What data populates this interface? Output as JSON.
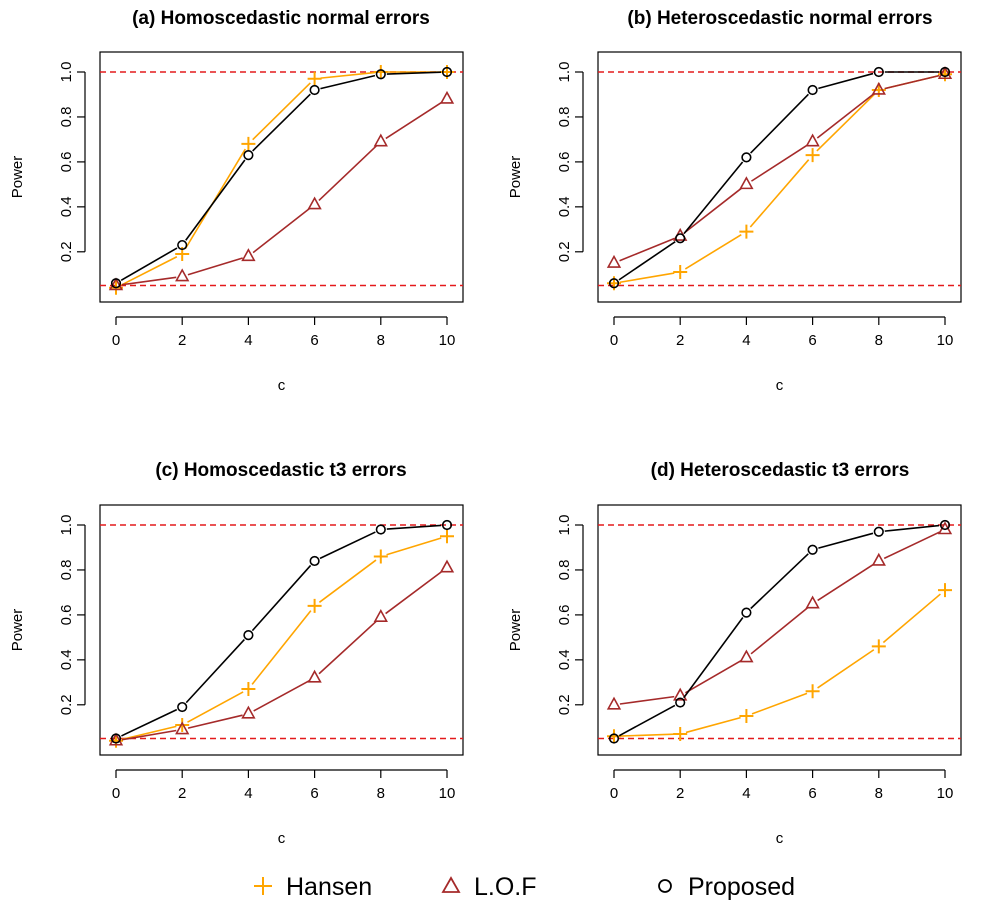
{
  "chart_data": [
    {
      "type": "line",
      "title": "(a) Homoscedastic normal errors",
      "xlabel": "c",
      "ylabel": "Power",
      "x": [
        0,
        2,
        4,
        6,
        8,
        10
      ],
      "xticks": [
        "0",
        "2",
        "4",
        "6",
        "8",
        "10"
      ],
      "yticks": [
        "0.2",
        "0.4",
        "0.6",
        "0.8",
        "1.0"
      ],
      "xlim": [
        0,
        10
      ],
      "ylim": [
        0.03,
        1.0
      ],
      "reference_lines": [
        1.0,
        0.05
      ],
      "grid": false,
      "series": [
        {
          "name": "Hansen",
          "values": [
            0.04,
            0.19,
            0.68,
            0.97,
            1.0,
            1.0
          ]
        },
        {
          "name": "L.O.F",
          "values": [
            0.05,
            0.09,
            0.18,
            0.41,
            0.69,
            0.88
          ]
        },
        {
          "name": "Proposed",
          "values": [
            0.06,
            0.23,
            0.63,
            0.92,
            0.99,
            1.0
          ]
        }
      ]
    },
    {
      "type": "line",
      "title": "(b) Heteroscedastic normal errors",
      "xlabel": "c",
      "ylabel": "Power",
      "x": [
        0,
        2,
        4,
        6,
        8,
        10
      ],
      "xticks": [
        "0",
        "2",
        "4",
        "6",
        "8",
        "10"
      ],
      "yticks": [
        "0.2",
        "0.4",
        "0.6",
        "0.8",
        "1.0"
      ],
      "xlim": [
        0,
        10
      ],
      "ylim": [
        0.03,
        1.0
      ],
      "reference_lines": [
        1.0,
        0.05
      ],
      "grid": false,
      "series": [
        {
          "name": "Hansen",
          "values": [
            0.06,
            0.11,
            0.29,
            0.63,
            0.92,
            0.99
          ]
        },
        {
          "name": "L.O.F",
          "values": [
            0.15,
            0.27,
            0.5,
            0.69,
            0.92,
            0.99
          ]
        },
        {
          "name": "Proposed",
          "values": [
            0.06,
            0.26,
            0.62,
            0.92,
            1.0,
            1.0
          ]
        }
      ]
    },
    {
      "type": "line",
      "title": "(c) Homoscedastic t3 errors",
      "xlabel": "c",
      "ylabel": "Power",
      "x": [
        0,
        2,
        4,
        6,
        8,
        10
      ],
      "xticks": [
        "0",
        "2",
        "4",
        "6",
        "8",
        "10"
      ],
      "yticks": [
        "0.2",
        "0.4",
        "0.6",
        "0.8",
        "1.0"
      ],
      "xlim": [
        0,
        10
      ],
      "ylim": [
        0.03,
        1.0
      ],
      "reference_lines": [
        1.0,
        0.05
      ],
      "grid": false,
      "series": [
        {
          "name": "Hansen",
          "values": [
            0.04,
            0.11,
            0.27,
            0.64,
            0.86,
            0.95
          ]
        },
        {
          "name": "L.O.F",
          "values": [
            0.04,
            0.09,
            0.16,
            0.32,
            0.59,
            0.81
          ]
        },
        {
          "name": "Proposed",
          "values": [
            0.05,
            0.19,
            0.51,
            0.84,
            0.98,
            1.0
          ]
        }
      ]
    },
    {
      "type": "line",
      "title": "(d) Heteroscedastic t3 errors",
      "xlabel": "c",
      "ylabel": "Power",
      "x": [
        0,
        2,
        4,
        6,
        8,
        10
      ],
      "xticks": [
        "0",
        "2",
        "4",
        "6",
        "8",
        "10"
      ],
      "yticks": [
        "0.2",
        "0.4",
        "0.6",
        "0.8",
        "1.0"
      ],
      "xlim": [
        0,
        10
      ],
      "ylim": [
        0.03,
        1.0
      ],
      "reference_lines": [
        1.0,
        0.05
      ],
      "grid": false,
      "series": [
        {
          "name": "Hansen",
          "values": [
            0.06,
            0.07,
            0.15,
            0.26,
            0.46,
            0.71
          ]
        },
        {
          "name": "L.O.F",
          "values": [
            0.2,
            0.24,
            0.41,
            0.65,
            0.84,
            0.98
          ]
        },
        {
          "name": "Proposed",
          "values": [
            0.05,
            0.21,
            0.61,
            0.89,
            0.97,
            1.0
          ]
        }
      ]
    }
  ],
  "legend": {
    "placement": "bottom",
    "items": [
      {
        "label": "Hansen",
        "marker": "plus",
        "color": "#FFA500"
      },
      {
        "label": "L.O.F",
        "marker": "triangle",
        "color": "#A52A2A"
      },
      {
        "label": "Proposed",
        "marker": "circle",
        "color": "#000000"
      }
    ]
  },
  "colors": {
    "hansen": "#FFA500",
    "lof": "#A52A2A",
    "proposed": "#000000",
    "reference": "#E41A1C"
  }
}
